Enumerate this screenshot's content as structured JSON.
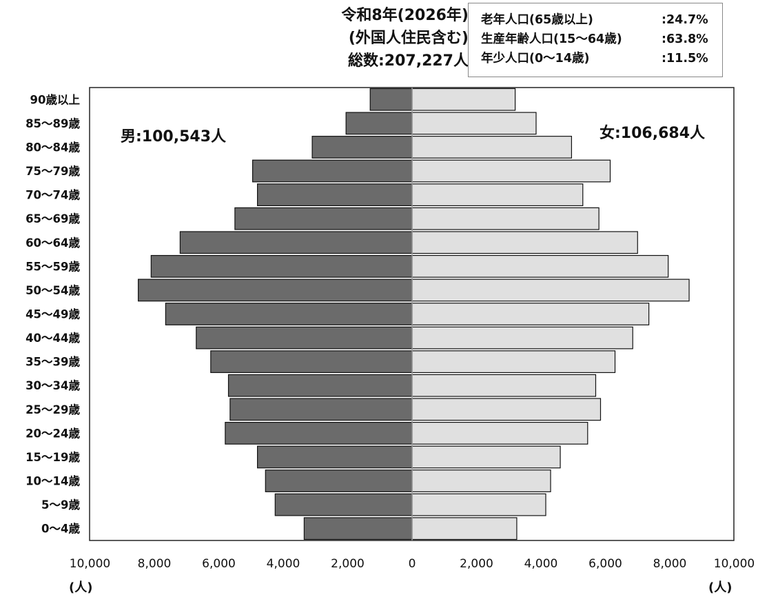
{
  "title": {
    "line1": "令和8年(2026年)",
    "line2": "(外国人住民含む)",
    "line3": "総数:207,227人"
  },
  "stats": [
    {
      "label": "老年人口(65歳以上)",
      "value": ":24.7%"
    },
    {
      "label": "生産年齢人口(15〜64歳)",
      "value": ":63.8%"
    },
    {
      "label": "年少人口(0〜14歳)",
      "value": ":11.5%"
    }
  ],
  "male_total": "男:100,543人",
  "female_total": "女:106,684人",
  "units": {
    "left": "(人)",
    "right": "(人)"
  },
  "colors": {
    "male": "#6b6b6b",
    "female": "#e0e0e0",
    "stroke": "#111111"
  },
  "chart_data": {
    "type": "bar",
    "orientation": "horizontal-pyramid",
    "categories": [
      "90歳以上",
      "85〜89歳",
      "80〜84歳",
      "75〜79歳",
      "70〜74歳",
      "65〜69歳",
      "60〜64歳",
      "55〜59歳",
      "50〜54歳",
      "45〜49歳",
      "40〜44歳",
      "35〜39歳",
      "30〜34歳",
      "25〜29歳",
      "20〜24歳",
      "15〜19歳",
      "10〜14歳",
      "5〜9歳",
      "0〜4歳"
    ],
    "series": [
      {
        "name": "男",
        "values": [
          1300,
          2050,
          3100,
          4950,
          4800,
          5500,
          7200,
          8100,
          8500,
          7650,
          6700,
          6250,
          5700,
          5650,
          5800,
          4800,
          4550,
          4250,
          3350
        ]
      },
      {
        "name": "女",
        "values": [
          3200,
          3850,
          4950,
          6150,
          5300,
          5800,
          7000,
          7950,
          8600,
          7350,
          6850,
          6300,
          5700,
          5850,
          5450,
          4600,
          4300,
          4150,
          3250
        ]
      }
    ],
    "xlim": [
      -10000,
      10000
    ],
    "x_ticks": [
      -10000,
      -8000,
      -6000,
      -4000,
      -2000,
      0,
      2000,
      4000,
      6000,
      8000,
      10000
    ],
    "x_tick_labels": [
      "10,000",
      "8,000",
      "6,000",
      "4,000",
      "2,000",
      "0",
      "2,000",
      "4,000",
      "6,000",
      "8,000",
      "10,000"
    ],
    "grid": false,
    "legend": "none"
  }
}
